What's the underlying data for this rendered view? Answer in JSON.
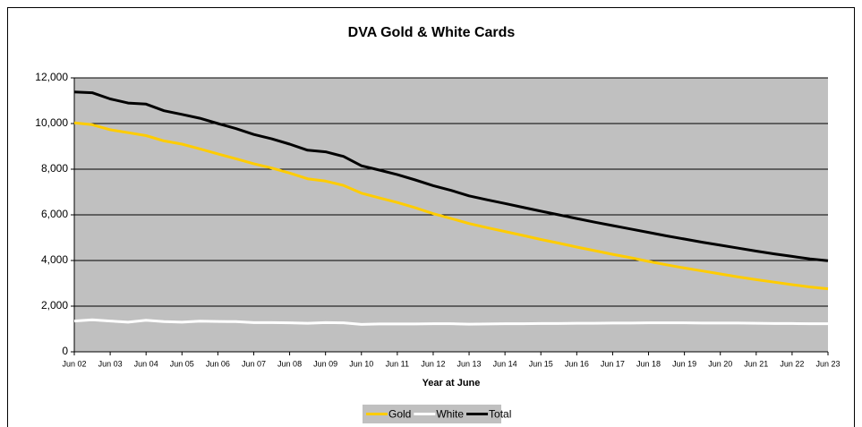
{
  "chart_data": {
    "type": "line",
    "title": "DVA Gold & White Cards",
    "x_label": "Year at June",
    "categories": [
      "Jun 02",
      null,
      "Jun 03",
      null,
      "Jun 04",
      null,
      "Jun 05",
      null,
      "Jun 06",
      null,
      "Jun 07",
      null,
      "Jun 08",
      null,
      "Jun 09",
      null,
      "Jun 10",
      null,
      "Jun 11",
      null,
      "Jun 12",
      null,
      "Jun 13",
      null,
      "Jun 14",
      null,
      "Jun 15",
      null,
      "Jun 16",
      null,
      "Jun 17",
      null,
      "Jun 18",
      null,
      "Jun 19",
      null,
      "Jun 20",
      null,
      "Jun 21",
      null,
      "Jun 22",
      null,
      "Jun 23"
    ],
    "series": [
      {
        "name": "Gold",
        "color": "#ffcc00",
        "values": [
          10030,
          9950,
          9730,
          9600,
          9470,
          9240,
          9100,
          8890,
          8670,
          8460,
          8240,
          8050,
          7830,
          7580,
          7480,
          7290,
          6950,
          6740,
          6540,
          6310,
          6050,
          5840,
          5620,
          5440,
          5270,
          5100,
          4920,
          4760,
          4590,
          4430,
          4270,
          4120,
          3960,
          3810,
          3670,
          3540,
          3410,
          3280,
          3160,
          3050,
          2940,
          2840,
          2760
        ]
      },
      {
        "name": "White",
        "color": "#ffffff",
        "values": [
          1350,
          1400,
          1350,
          1300,
          1380,
          1320,
          1300,
          1340,
          1330,
          1320,
          1280,
          1280,
          1270,
          1250,
          1280,
          1270,
          1200,
          1220,
          1220,
          1220,
          1230,
          1230,
          1210,
          1220,
          1230,
          1230,
          1240,
          1240,
          1250,
          1250,
          1260,
          1260,
          1270,
          1270,
          1270,
          1260,
          1260,
          1260,
          1250,
          1240,
          1240,
          1230,
          1230
        ]
      },
      {
        "name": "Total",
        "color": "#000000",
        "values": [
          11380,
          11350,
          11080,
          10900,
          10850,
          10560,
          10400,
          10230,
          10000,
          9780,
          9520,
          9330,
          9100,
          8830,
          8760,
          8560,
          8150,
          7960,
          7760,
          7530,
          7280,
          7070,
          6830,
          6660,
          6500,
          6330,
          6160,
          6000,
          5840,
          5680,
          5530,
          5380,
          5230,
          5080,
          4940,
          4800,
          4670,
          4540,
          4410,
          4290,
          4180,
          4070,
          3990
        ]
      }
    ],
    "ylim": [
      0,
      12000
    ],
    "yticks": [
      0,
      {
        "value": 2000,
        "label": "2,000"
      },
      {
        "value": 4000,
        "label": "4,000"
      },
      {
        "value": 6000,
        "label": "6,000"
      },
      {
        "value": 8000,
        "label": "8,000"
      },
      {
        "value": 10000,
        "label": "10,000"
      },
      {
        "value": 12000,
        "label": "12,000"
      }
    ],
    "grid": true,
    "plot_background": "#c0c0c0",
    "legend": "bottom"
  }
}
